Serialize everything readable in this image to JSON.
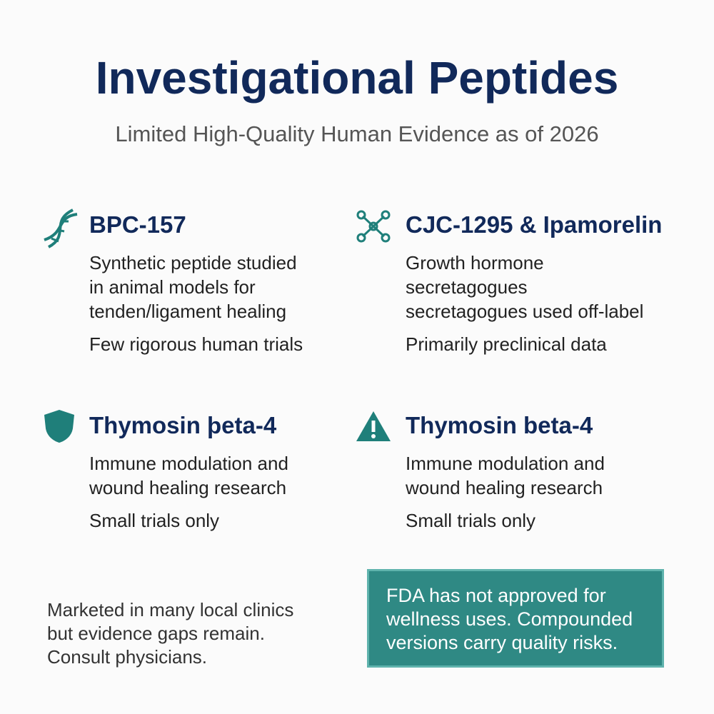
{
  "header": {
    "title": "Investigational Peptides",
    "subtitle": "Limited High-Quality Human Evidence as of 2026"
  },
  "items": [
    {
      "title": "BPC-157",
      "lines": [
        "Synthetic peptide studied",
        "in animal models for",
        "tenden/ligament healing"
      ],
      "note": "Few rigorous human trials"
    },
    {
      "title": "CJC-1295 & Ipamorelin",
      "lines": [
        "Growth hormone",
        "secretagogues",
        "secretagogues used off-label"
      ],
      "note": "Primarily preclinical data"
    },
    {
      "title": "Thymosin þeta-4",
      "lines": [
        "Immune modulation and",
        "wound healing research"
      ],
      "note": "Small trials only"
    },
    {
      "title": "Thymosin beta-4",
      "lines": [
        "Immune modulation and",
        "wound healing research"
      ],
      "note": "Small trials only"
    }
  ],
  "footer": {
    "lines": [
      "Marketed in many local clinics",
      "but evidence gaps remain.",
      "Consult physicians."
    ]
  },
  "warning": {
    "lines": [
      "FDA has not approved for",
      "wellness uses. Compounded",
      "versions carry quality risks."
    ]
  }
}
